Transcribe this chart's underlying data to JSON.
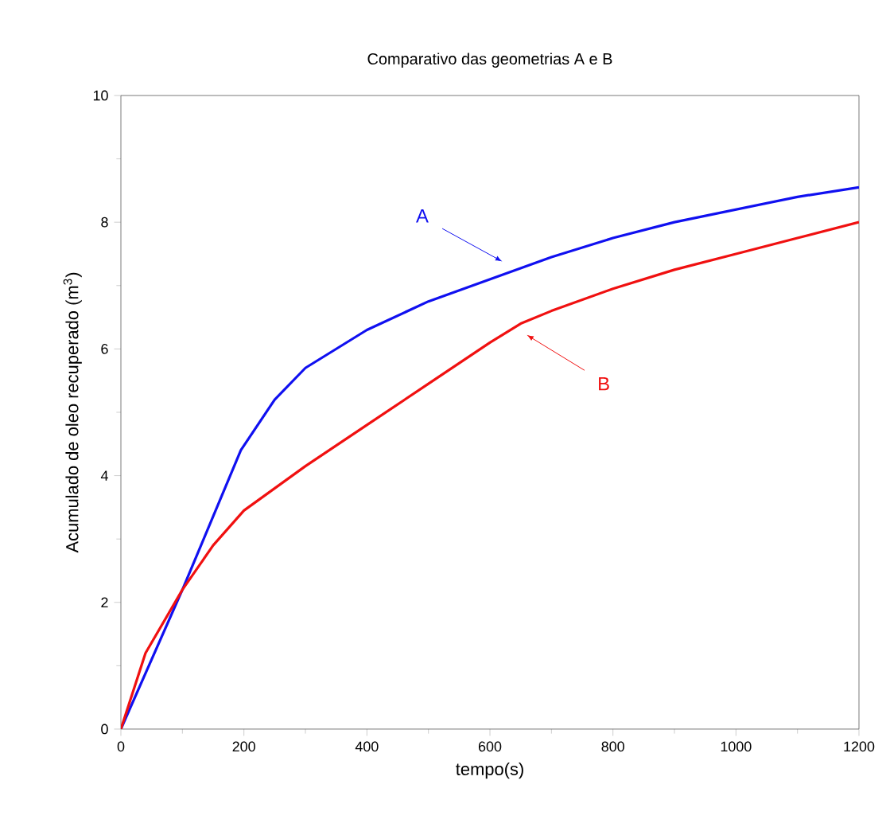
{
  "chart_data": {
    "type": "line",
    "title": "Comparativo das geometrias A e B",
    "xlabel": "tempo(s)",
    "ylabel": "Acumulado de oleo recuperado (m$^{3}$)",
    "xlim": [
      0,
      1200
    ],
    "ylim": [
      0,
      10
    ],
    "xticks": [
      0,
      200,
      400,
      600,
      800,
      1000,
      1200
    ],
    "yticks": [
      0,
      2,
      4,
      6,
      8,
      10
    ],
    "grid": false,
    "marker": "none",
    "line_style": "solid",
    "series": [
      {
        "color": "#1010f0",
        "x": [
          0,
          100,
          195,
          250,
          300,
          400,
          500,
          600,
          700,
          800,
          900,
          1000,
          1100,
          1200
        ],
        "values": [
          0,
          2.2,
          4.4,
          5.2,
          5.7,
          6.3,
          6.75,
          7.1,
          7.45,
          7.75,
          8.0,
          8.2,
          8.4,
          8.55
        ]
      },
      {
        "color": "#f01010",
        "x": [
          0,
          40,
          100,
          150,
          200,
          300,
          400,
          500,
          600,
          650,
          700,
          800,
          900,
          1000,
          1100,
          1200
        ],
        "values": [
          0,
          1.2,
          2.2,
          2.9,
          3.45,
          4.15,
          4.8,
          5.45,
          6.1,
          6.4,
          6.6,
          6.95,
          7.25,
          7.5,
          7.75,
          8.0
        ]
      }
    ],
    "annotations": [
      {
        "text": "A",
        "x": 620,
        "y": 7.3
      },
      {
        "text": "B",
        "x": 660,
        "y": 6.3
      }
    ]
  }
}
